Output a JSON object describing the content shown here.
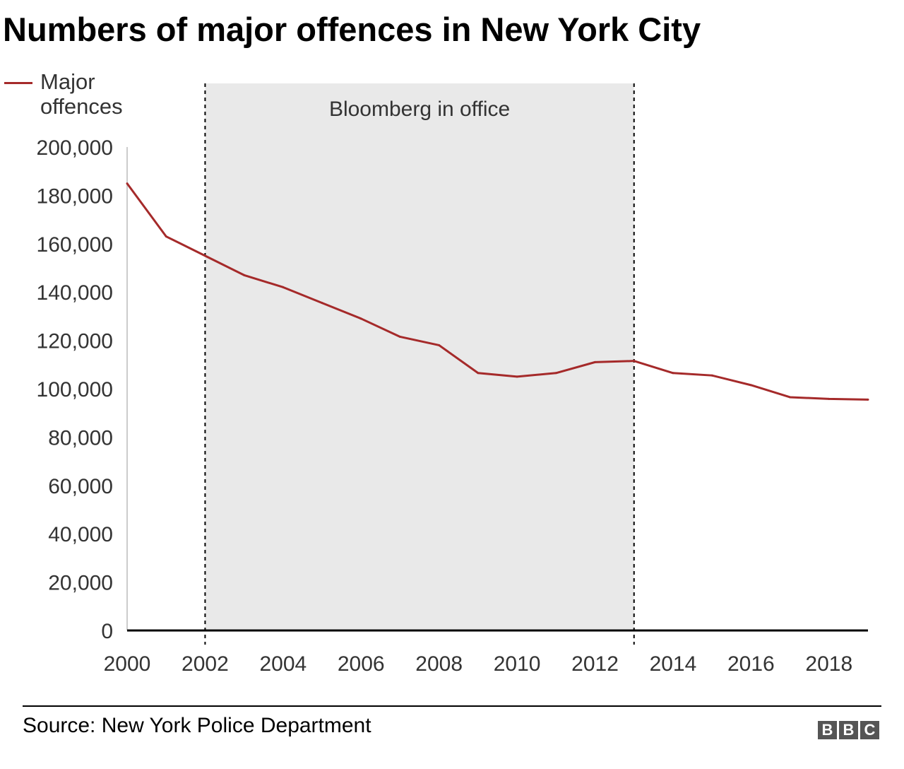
{
  "header": {
    "title": "Numbers of major offences in New York City"
  },
  "legend": {
    "label": "Major offences"
  },
  "chart_data": {
    "type": "line",
    "title": "Numbers of major offences in New York City",
    "x": [
      2000,
      2001,
      2002,
      2003,
      2004,
      2005,
      2006,
      2007,
      2008,
      2009,
      2010,
      2011,
      2012,
      2013,
      2014,
      2015,
      2016,
      2017,
      2018,
      2019
    ],
    "series": [
      {
        "name": "Major offences",
        "color": "#a52a2a",
        "values": [
          184900,
          163000,
          155000,
          147000,
          142000,
          135500,
          129000,
          121500,
          118000,
          106500,
          105000,
          106500,
          111000,
          111500,
          106500,
          105500,
          101500,
          96500,
          95800,
          95500
        ]
      }
    ],
    "xlim": [
      2000,
      2019
    ],
    "ylim": [
      0,
      200000
    ],
    "yticks": [
      "200,000",
      "180,000",
      "160,000",
      "140,000",
      "120,000",
      "100,000",
      "80,000",
      "60,000",
      "40,000",
      "20,000",
      "0"
    ],
    "xticks": [
      "2000",
      "2002",
      "2004",
      "2006",
      "2008",
      "2010",
      "2012",
      "2014",
      "2016",
      "2018"
    ],
    "shaded_region": {
      "start": 2002,
      "end": 2013,
      "label": "Bloomberg in office"
    },
    "grid": false,
    "legend_position": "top-left"
  },
  "footer": {
    "source": "Source: New York Police Department",
    "logo": [
      "B",
      "B",
      "C"
    ]
  }
}
